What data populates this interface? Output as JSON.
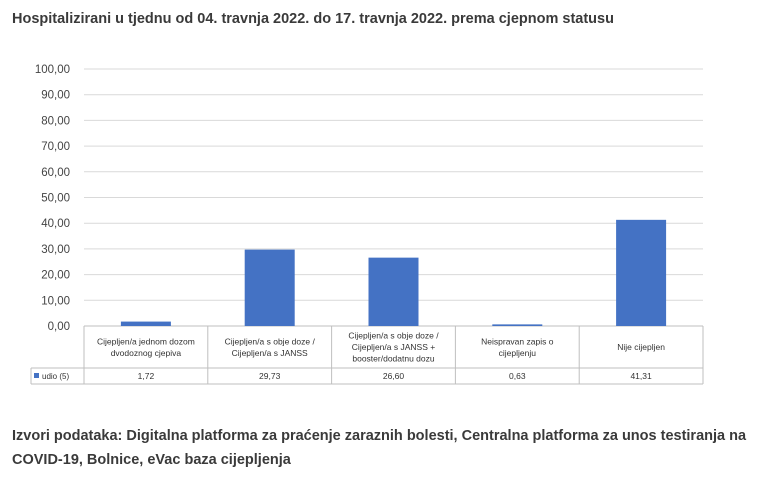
{
  "title": "Hospitalizirani u tjednu od 04. travnja 2022. do 17. travnja 2022. prema cjepnom statusu",
  "source": "Izvori podataka: Digitalna platforma za praćenje zaraznih bolesti, Centralna platforma za unos testiranja na COVID-19, Bolnice, eVac baza cijepljenja",
  "chart_data": {
    "type": "bar",
    "categories": [
      [
        "Cijepljen/a jednom dozom",
        "dvodoznog cjepiva"
      ],
      [
        "Cijepljen/a s obje doze /",
        "Cijepljen/a s JANSS"
      ],
      [
        "Cijepljen/a s obje doze /",
        "Cijepljen/a s JANSS +",
        "booster/dodatnu dozu"
      ],
      [
        "Neispravan zapis o",
        "cijepljenju"
      ],
      [
        "Nije cijepljen"
      ]
    ],
    "series": [
      {
        "name": "udio (5)",
        "color": "#4472C4",
        "values": [
          1.72,
          29.73,
          26.6,
          0.63,
          41.31
        ]
      }
    ],
    "value_labels": [
      "1,72",
      "29,73",
      "26,60",
      "0,63",
      "41,31"
    ],
    "y_ticks": [
      "0,00",
      "10,00",
      "20,00",
      "30,00",
      "40,00",
      "50,00",
      "60,00",
      "70,00",
      "80,00",
      "90,00",
      "100,00"
    ],
    "ylim": [
      0,
      100
    ],
    "grid": true,
    "data_table": true,
    "legend": "data-table-left"
  }
}
